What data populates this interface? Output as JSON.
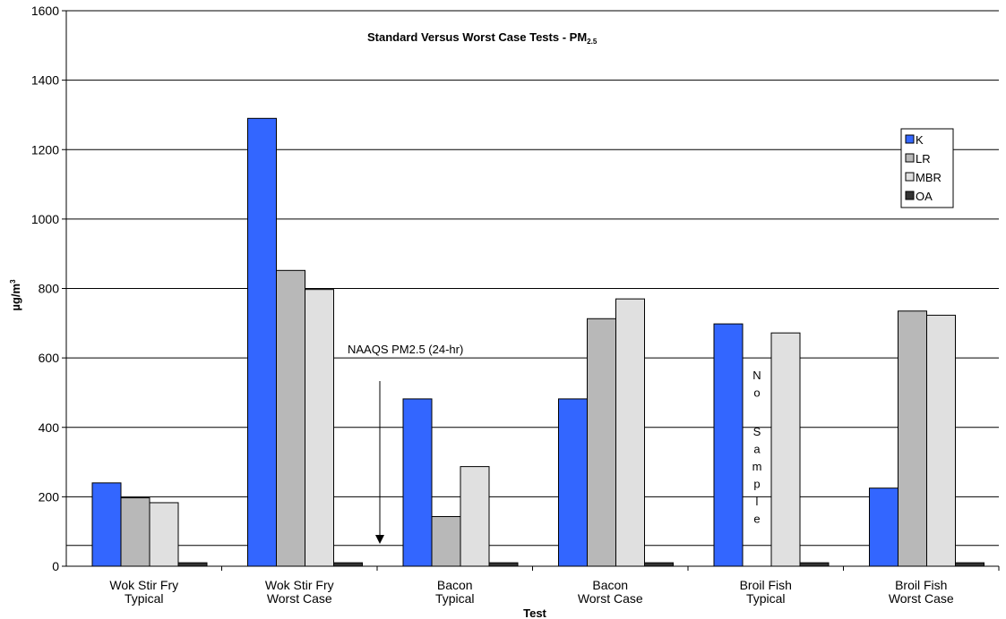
{
  "chart_data": {
    "type": "bar",
    "title": "Standard Versus Worst Case Tests - PM",
    "title_subscript": "2.5",
    "xlabel": "Test",
    "ylabel": "µg/m",
    "ylabel_superscript": "3",
    "ylim": [
      0,
      1600
    ],
    "yticks": [
      0,
      200,
      400,
      600,
      800,
      1000,
      1200,
      1400,
      1600
    ],
    "grid": true,
    "legend_position": "top-right",
    "categories": [
      [
        "Wok Stir Fry",
        "Typical"
      ],
      [
        "Wok Stir Fry",
        "Worst Case"
      ],
      [
        "Bacon",
        "Typical"
      ],
      [
        "Bacon",
        "Worst Case"
      ],
      [
        "Broil Fish",
        "Typical"
      ],
      [
        "Broil Fish",
        "Worst Case"
      ]
    ],
    "series": [
      {
        "name": "K",
        "color": "#3366ff",
        "values": [
          240,
          1290,
          482,
          482,
          698,
          225
        ]
      },
      {
        "name": "LR",
        "color": "#b8b8b8",
        "values": [
          197,
          852,
          143,
          713,
          null,
          735
        ]
      },
      {
        "name": "MBR",
        "color": "#e0e0e0",
        "values": [
          183,
          797,
          287,
          770,
          672,
          723
        ]
      },
      {
        "name": "OA",
        "color": "#333333",
        "values": [
          10,
          10,
          10,
          10,
          10,
          10
        ]
      }
    ],
    "reference_line": {
      "label": "NAAQS PM2.5 (24-hr)",
      "value": 60
    },
    "no_sample_label": "No Sample",
    "no_sample_category_index": 4
  }
}
